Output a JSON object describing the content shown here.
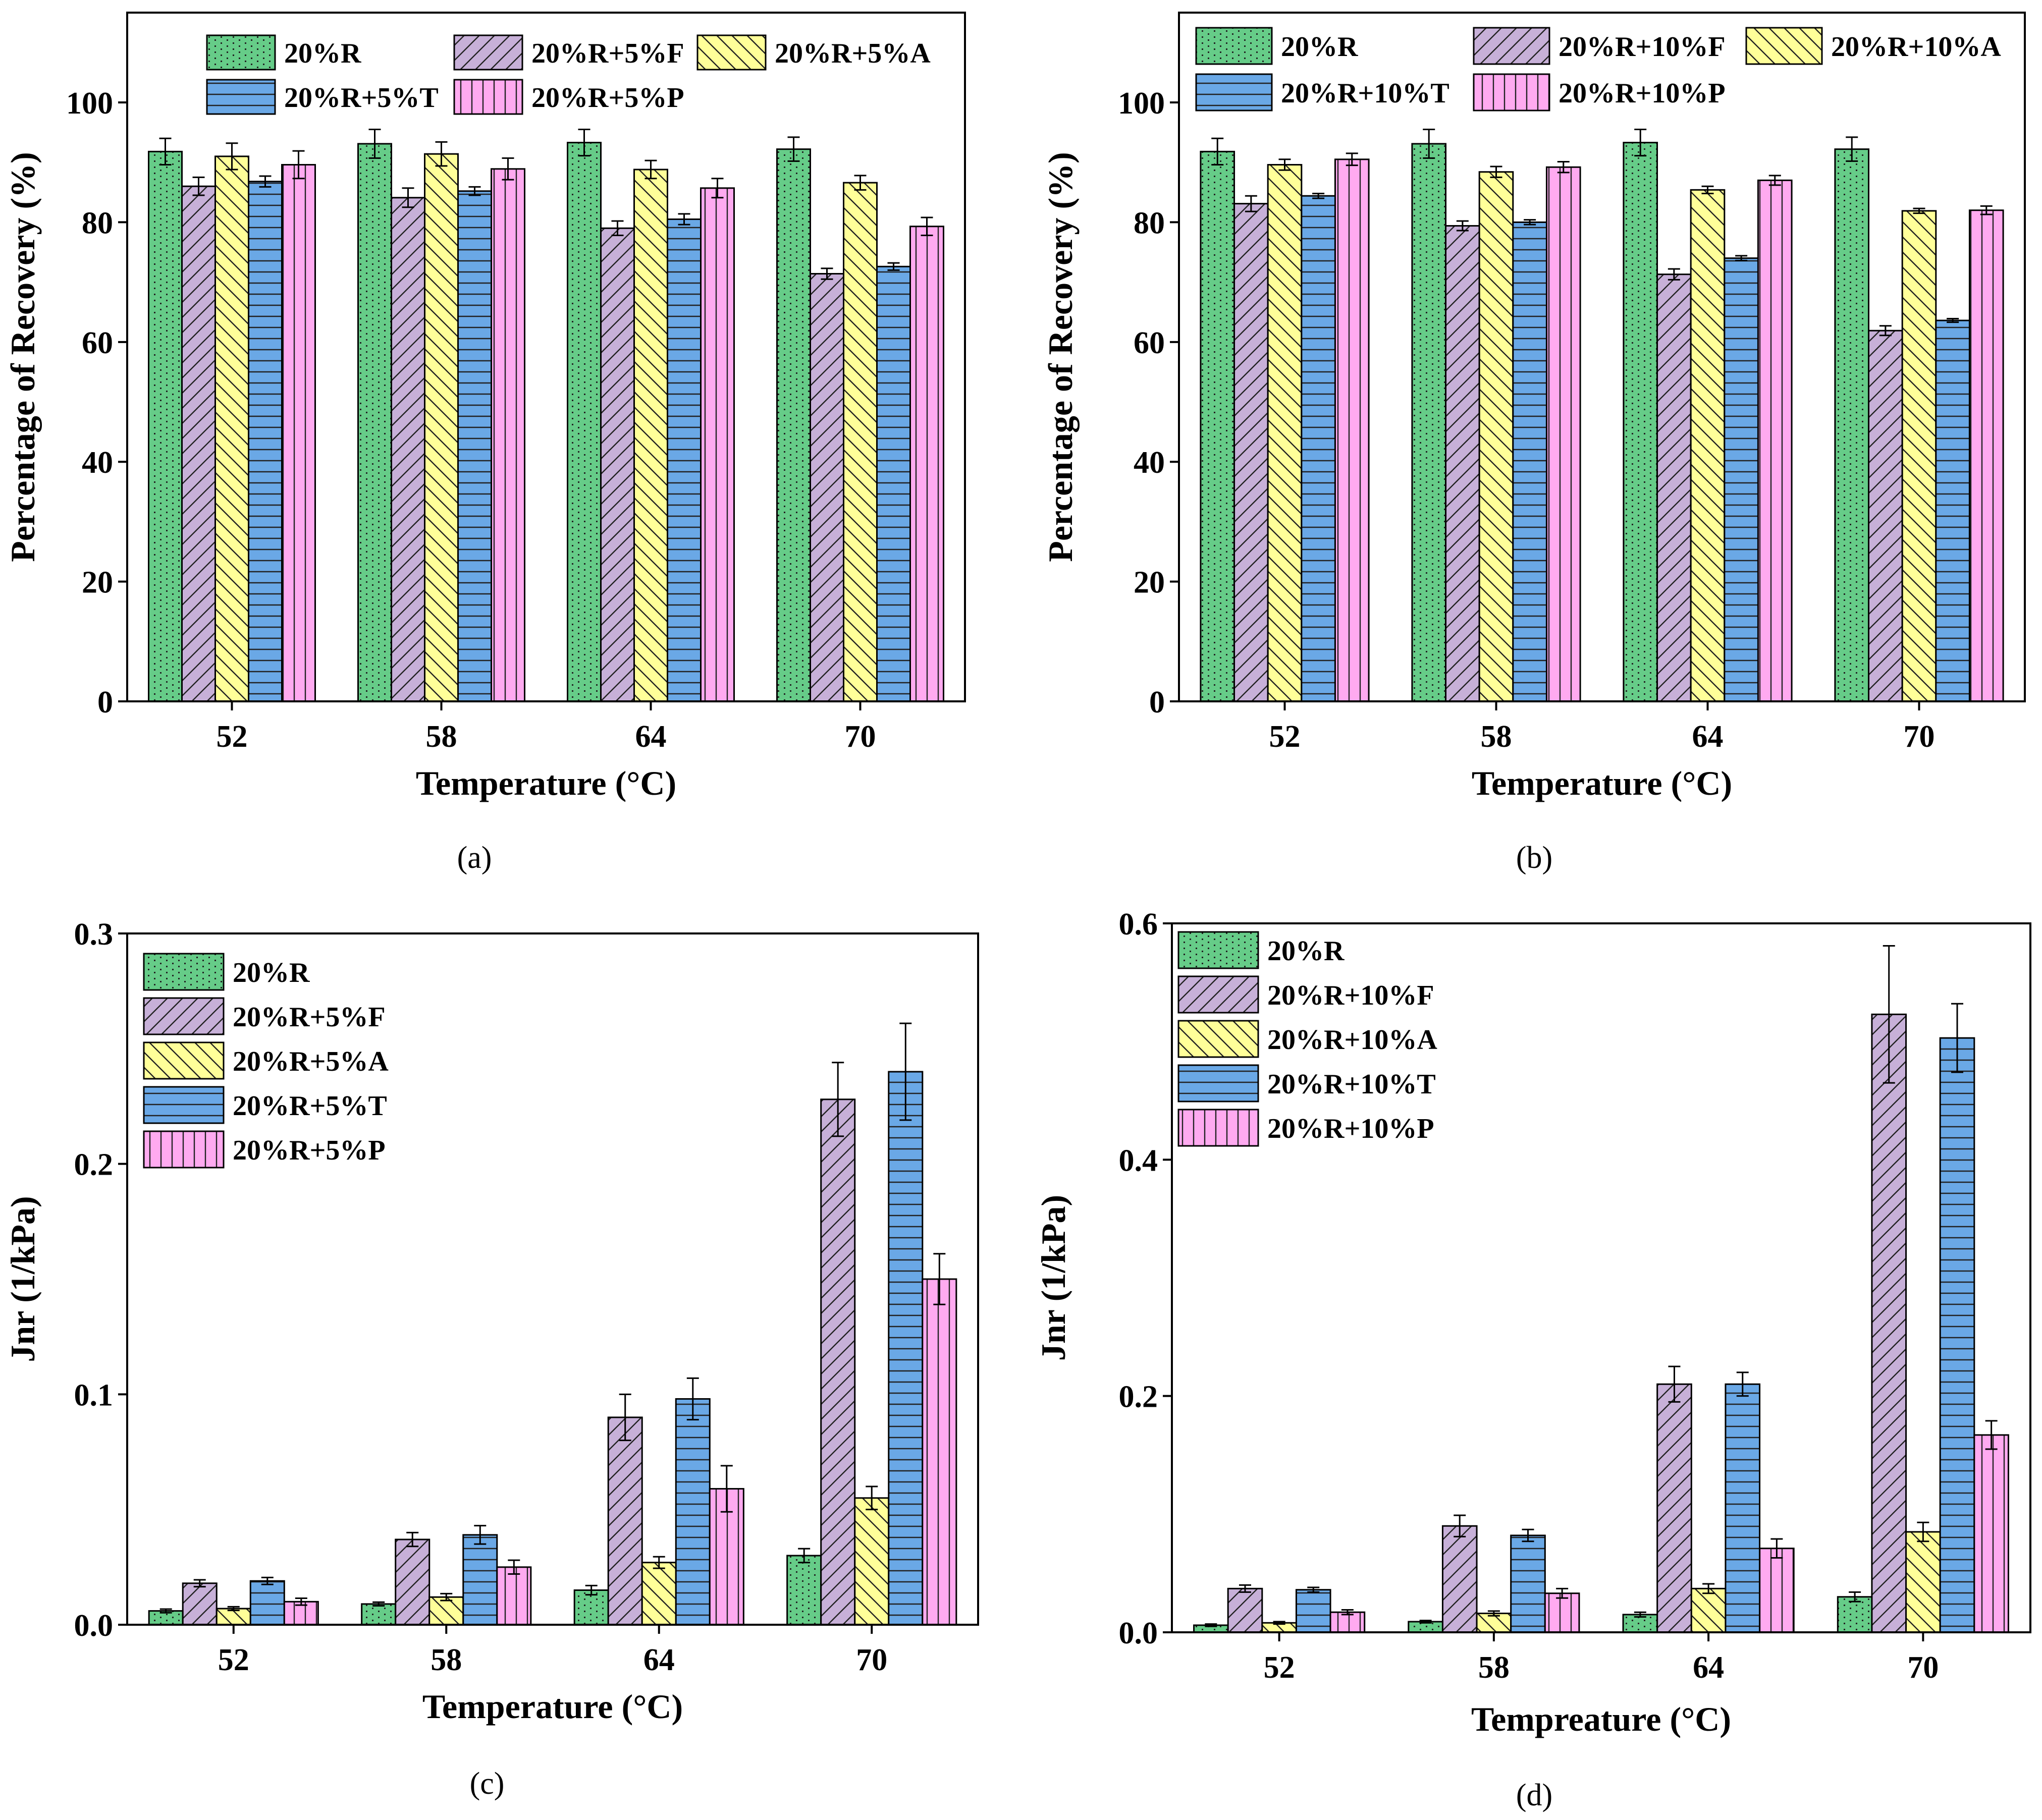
{
  "colors": {
    "20%R": "#66cc88",
    "F": "#c7b0d8",
    "A": "#ffff99",
    "T": "#6aa8e6",
    "P": "#ffaaf0"
  },
  "chart_data": [
    {
      "id": "a",
      "type": "bar",
      "caption": "(a)",
      "xlabel": "Temperature (°C)",
      "ylabel": "Percentage of Recovery (%)",
      "ylim": [
        0,
        115
      ],
      "yticks": [
        "0",
        "20",
        "40",
        "60",
        "80",
        "100"
      ],
      "legend_layout": "grid",
      "categories": [
        "52",
        "58",
        "64",
        "70"
      ],
      "series": [
        {
          "name": "20%R",
          "color_key": "20%R",
          "pattern": "dots",
          "values": [
            91.8,
            93.1,
            93.3,
            92.2
          ],
          "errors": [
            2.2,
            2.4,
            2.2,
            2.0
          ]
        },
        {
          "name": "20%R+5%F",
          "color_key": "F",
          "pattern": "diag",
          "values": [
            86.0,
            84.1,
            79.0,
            71.4
          ],
          "errors": [
            1.5,
            1.6,
            1.2,
            0.9
          ]
        },
        {
          "name": "20%R+5%A",
          "color_key": "A",
          "pattern": "back",
          "values": [
            91.0,
            91.4,
            88.8,
            86.6
          ],
          "errors": [
            2.2,
            2.0,
            1.5,
            1.2
          ]
        },
        {
          "name": "20%R+5%T",
          "color_key": "T",
          "pattern": "hlines",
          "values": [
            86.8,
            85.2,
            80.5,
            72.6
          ],
          "errors": [
            0.9,
            0.7,
            0.9,
            0.6
          ]
        },
        {
          "name": "20%R+5%P",
          "color_key": "P",
          "pattern": "vlines",
          "values": [
            89.6,
            88.9,
            85.7,
            79.3
          ],
          "errors": [
            2.3,
            1.8,
            1.6,
            1.5
          ]
        }
      ]
    },
    {
      "id": "b",
      "type": "bar",
      "caption": "(b)",
      "xlabel": "Temperature (°C)",
      "ylabel": "Percentage of Recovery (%)",
      "ylim": [
        0,
        115
      ],
      "yticks": [
        "0",
        "20",
        "40",
        "60",
        "80",
        "100"
      ],
      "legend_layout": "grid",
      "categories": [
        "52",
        "58",
        "64",
        "70"
      ],
      "series": [
        {
          "name": "20%R",
          "color_key": "20%R",
          "pattern": "dots",
          "values": [
            91.8,
            93.1,
            93.3,
            92.2
          ],
          "errors": [
            2.2,
            2.4,
            2.2,
            2.0
          ]
        },
        {
          "name": "20%R+10%F",
          "color_key": "F",
          "pattern": "diag",
          "values": [
            83.1,
            79.4,
            71.3,
            61.9
          ],
          "errors": [
            1.3,
            0.8,
            0.9,
            0.8
          ]
        },
        {
          "name": "20%R+10%A",
          "color_key": "A",
          "pattern": "back",
          "values": [
            89.6,
            88.4,
            85.4,
            81.9
          ],
          "errors": [
            0.9,
            0.9,
            0.6,
            0.4
          ]
        },
        {
          "name": "20%R+10%T",
          "color_key": "T",
          "pattern": "hlines",
          "values": [
            84.4,
            80.0,
            74.0,
            63.6
          ],
          "errors": [
            0.4,
            0.4,
            0.4,
            0.3
          ]
        },
        {
          "name": "20%R+10%P",
          "color_key": "P",
          "pattern": "vlines",
          "values": [
            90.5,
            89.2,
            87.0,
            82.0
          ],
          "errors": [
            1.0,
            0.9,
            0.8,
            0.7
          ]
        }
      ]
    },
    {
      "id": "c",
      "type": "bar",
      "caption": "(c)",
      "xlabel": "Temperature (°C)",
      "ylabel": "Jnr (1/kPa)",
      "ylim": [
        0,
        0.3
      ],
      "yticks": [
        "0.0",
        "0.1",
        "0.2",
        "0.3"
      ],
      "legend_layout": "column",
      "categories": [
        "52",
        "58",
        "64",
        "70"
      ],
      "series": [
        {
          "name": "20%R",
          "color_key": "20%R",
          "pattern": "dots",
          "values": [
            0.006,
            0.009,
            0.015,
            0.03
          ],
          "errors": [
            0.0008,
            0.0008,
            0.002,
            0.003
          ]
        },
        {
          "name": "20%R+5%F",
          "color_key": "F",
          "pattern": "diag",
          "values": [
            0.018,
            0.037,
            0.09,
            0.228
          ],
          "errors": [
            0.0015,
            0.003,
            0.01,
            0.016
          ]
        },
        {
          "name": "20%R+5%A",
          "color_key": "A",
          "pattern": "back",
          "values": [
            0.007,
            0.012,
            0.027,
            0.055
          ],
          "errors": [
            0.0008,
            0.0015,
            0.0025,
            0.005
          ]
        },
        {
          "name": "20%R+5%T",
          "color_key": "T",
          "pattern": "hlines",
          "values": [
            0.019,
            0.039,
            0.098,
            0.24
          ],
          "errors": [
            0.0015,
            0.004,
            0.009,
            0.021
          ]
        },
        {
          "name": "20%R+5%P",
          "color_key": "P",
          "pattern": "vlines",
          "values": [
            0.01,
            0.025,
            0.059,
            0.15
          ],
          "errors": [
            0.0015,
            0.003,
            0.01,
            0.011
          ]
        }
      ]
    },
    {
      "id": "d",
      "type": "bar",
      "caption": "(d)",
      "xlabel": "Tempreature (°C)",
      "ylabel": "Jnr (1/kPa)",
      "ylim": [
        0,
        0.6
      ],
      "yticks": [
        "0.0",
        "0.2",
        "0.4",
        "0.6"
      ],
      "legend_layout": "column",
      "categories": [
        "52",
        "58",
        "64",
        "70"
      ],
      "series": [
        {
          "name": "20%R",
          "color_key": "20%R",
          "pattern": "dots",
          "values": [
            0.006,
            0.009,
            0.015,
            0.03
          ],
          "errors": [
            0.001,
            0.001,
            0.002,
            0.004
          ]
        },
        {
          "name": "20%R+10%F",
          "color_key": "F",
          "pattern": "diag",
          "values": [
            0.037,
            0.09,
            0.21,
            0.523
          ],
          "errors": [
            0.003,
            0.009,
            0.015,
            0.058
          ]
        },
        {
          "name": "20%R+10%A",
          "color_key": "A",
          "pattern": "back",
          "values": [
            0.008,
            0.016,
            0.037,
            0.085
          ],
          "errors": [
            0.001,
            0.002,
            0.004,
            0.008
          ]
        },
        {
          "name": "20%R+10%T",
          "color_key": "T",
          "pattern": "hlines",
          "values": [
            0.036,
            0.082,
            0.21,
            0.503
          ],
          "errors": [
            0.002,
            0.005,
            0.01,
            0.029
          ]
        },
        {
          "name": "20%R+10%P",
          "color_key": "P",
          "pattern": "vlines",
          "values": [
            0.017,
            0.033,
            0.071,
            0.167
          ],
          "errors": [
            0.002,
            0.004,
            0.008,
            0.012
          ]
        }
      ]
    }
  ]
}
